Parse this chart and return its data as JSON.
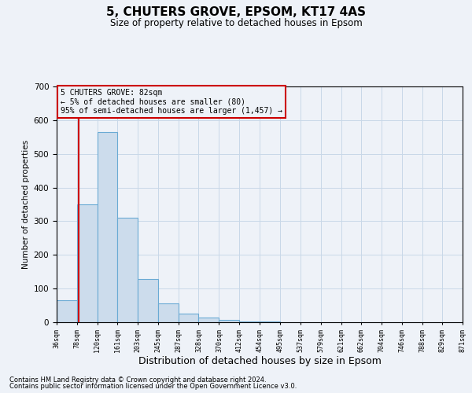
{
  "title": "5, CHUTERS GROVE, EPSOM, KT17 4AS",
  "subtitle": "Size of property relative to detached houses in Epsom",
  "xlabel": "Distribution of detached houses by size in Epsom",
  "ylabel": "Number of detached properties",
  "footnote1": "Contains HM Land Registry data © Crown copyright and database right 2024.",
  "footnote2": "Contains public sector information licensed under the Open Government Licence v3.0.",
  "bar_left_edges": [
    36,
    78,
    120,
    161,
    203,
    245,
    287,
    328,
    370,
    412,
    454,
    495,
    537,
    579,
    621,
    662,
    704,
    746,
    788,
    829
  ],
  "bar_heights": [
    65,
    350,
    565,
    310,
    128,
    57,
    25,
    14,
    7,
    3,
    2,
    1,
    1,
    1,
    0,
    0,
    1,
    0,
    0,
    1
  ],
  "bar_color": "#ccdcec",
  "bar_edge_color": "#6aaad4",
  "grid_color": "#c8d8e8",
  "vline_x": 82,
  "vline_color": "#cc0000",
  "annotation_line1": "5 CHUTERS GROVE: 82sqm",
  "annotation_line2": "← 5% of detached houses are smaller (80)",
  "annotation_line3": "95% of semi-detached houses are larger (1,457) →",
  "ylim": [
    0,
    700
  ],
  "yticks": [
    0,
    100,
    200,
    300,
    400,
    500,
    600,
    700
  ],
  "xtick_positions": [
    36,
    78,
    120,
    161,
    203,
    245,
    287,
    328,
    370,
    412,
    454,
    495,
    537,
    579,
    621,
    662,
    704,
    746,
    788,
    829,
    871
  ],
  "xtick_labels": [
    "36sqm",
    "78sqm",
    "120sqm",
    "161sqm",
    "203sqm",
    "245sqm",
    "287sqm",
    "328sqm",
    "370sqm",
    "412sqm",
    "454sqm",
    "495sqm",
    "537sqm",
    "579sqm",
    "621sqm",
    "662sqm",
    "704sqm",
    "746sqm",
    "788sqm",
    "829sqm",
    "871sqm"
  ],
  "background_color": "#eef2f8",
  "xlim": [
    36,
    871
  ]
}
